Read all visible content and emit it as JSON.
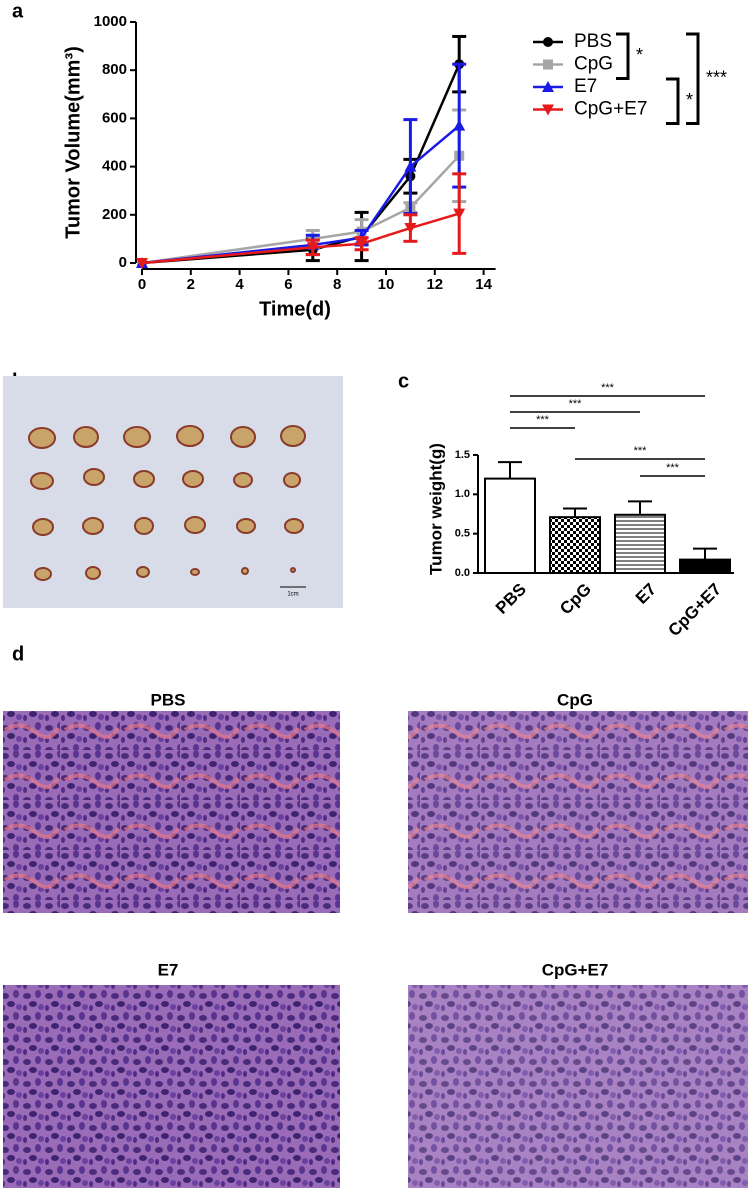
{
  "panel_labels": [
    "a",
    "b",
    "c",
    "d"
  ],
  "chart_data": [
    {
      "type": "line",
      "x_label": "Time(d)",
      "y_label": "Tumor Volume(mm³)",
      "x": [
        0,
        7,
        9,
        11,
        13
      ],
      "xlim": [
        0,
        15
      ],
      "xticks": [
        0,
        2,
        4,
        6,
        8,
        10,
        12,
        14
      ],
      "ylim": [
        0,
        1000
      ],
      "yticks": [
        0,
        200,
        400,
        600,
        800,
        1000
      ],
      "series": [
        {
          "name": "PBS",
          "color": "#000000",
          "marker": "circle",
          "values": [
            0,
            55,
            110,
            360,
            825
          ],
          "errors": [
            0,
            45,
            100,
            70,
            115
          ]
        },
        {
          "name": "CpG",
          "color": "#a6a6a6",
          "marker": "square",
          "values": [
            0,
            100,
            130,
            230,
            445
          ],
          "errors": [
            0,
            35,
            50,
            20,
            190
          ]
        },
        {
          "name": "E7",
          "color": "#1a1ae6",
          "marker": "triangle-up",
          "values": [
            0,
            75,
            105,
            400,
            570
          ],
          "errors": [
            0,
            40,
            30,
            195,
            255
          ]
        },
        {
          "name": "CpG+E7",
          "color": "#e61a1a",
          "marker": "triangle-down",
          "values": [
            0,
            65,
            80,
            145,
            205
          ],
          "errors": [
            0,
            30,
            25,
            55,
            165
          ]
        }
      ],
      "annotations": [
        {
          "text": "*",
          "from": "PBS",
          "to": "CpG"
        },
        {
          "text": "*",
          "from": "E7",
          "to": "CpG+E7"
        },
        {
          "text": "***",
          "from": "PBS",
          "to": "CpG+E7"
        }
      ]
    },
    {
      "type": "bar",
      "y_label": "Tumor weight(g)",
      "categories": [
        "PBS",
        "CpG",
        "E7",
        "CpG+E7"
      ],
      "values": [
        1.2,
        0.71,
        0.74,
        0.17
      ],
      "errors": [
        0.21,
        0.11,
        0.17,
        0.14
      ],
      "fills": [
        "white",
        "checker",
        "hlines",
        "black"
      ],
      "ylim": [
        0,
        1.5
      ],
      "yticks": [
        {
          "value": 0,
          "label": "0.0"
        },
        0.5,
        {
          "value": 1.0,
          "label": "1.0"
        },
        1.5
      ],
      "comparisons": [
        {
          "from": "PBS",
          "to": "CpG+E7",
          "label": "***"
        },
        {
          "from": "PBS",
          "to": "E7",
          "label": "***"
        },
        {
          "from": "PBS",
          "to": "CpG",
          "label": "***"
        },
        {
          "from": "CpG",
          "to": "CpG+E7",
          "label": "***"
        },
        {
          "from": "E7",
          "to": "CpG+E7",
          "label": "***"
        }
      ]
    }
  ],
  "photo": {
    "scale_label": "1cm"
  },
  "histology": {
    "titles": [
      "PBS",
      "CpG",
      "E7",
      "CpG+E7"
    ]
  }
}
